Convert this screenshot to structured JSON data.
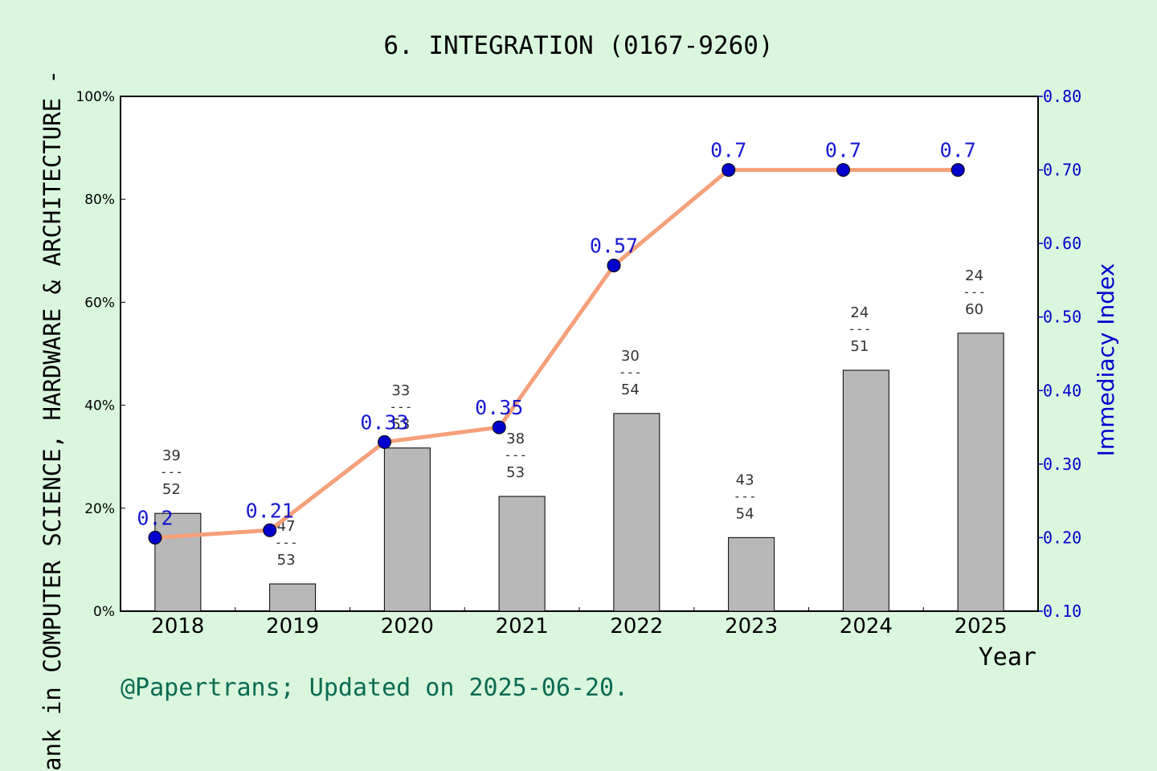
{
  "chart_data": {
    "type": "bar+line",
    "title": "6. INTEGRATION (0167-9260)",
    "xlabel": "Year",
    "ylabel_left": "ank in COMPUTER SCIENCE, HARDWARE & ARCHITECTURE -",
    "ylabel_right": "Immediacy Index",
    "categories": [
      "2018",
      "2019",
      "2020",
      "2021",
      "2022",
      "2023",
      "2024",
      "2025"
    ],
    "left_axis": {
      "ylim": [
        0,
        100
      ],
      "ticks": [
        "0%",
        "20%",
        "40%",
        "60%",
        "80%",
        "100%"
      ],
      "tick_values": [
        0,
        20,
        40,
        60,
        80,
        100
      ]
    },
    "right_axis": {
      "ylim": [
        0.1,
        0.8
      ],
      "ticks": [
        "0.10",
        "0.20",
        "0.30",
        "0.40",
        "0.50",
        "0.60",
        "0.70",
        "0.80"
      ],
      "tick_values": [
        0.1,
        0.2,
        0.3,
        0.4,
        0.5,
        0.6,
        0.7,
        0.8
      ]
    },
    "bars": {
      "color": "#b8b8b8",
      "values": [
        19.0,
        5.3,
        31.7,
        22.3,
        38.4,
        14.3,
        46.8,
        54.0
      ],
      "rank": [
        "39",
        "47",
        "33",
        "38",
        "30",
        "43",
        "24",
        "24"
      ],
      "total": [
        "52",
        "53",
        "53",
        "53",
        "54",
        "54",
        "51",
        "60"
      ],
      "separator": "---"
    },
    "line": {
      "color": "#f5a07a",
      "marker_color": "#0000cc",
      "values": [
        0.2,
        0.21,
        0.33,
        0.35,
        0.57,
        0.7,
        0.7,
        0.7
      ],
      "labels": [
        "0.2",
        "0.21",
        "0.33",
        "0.35",
        "0.57",
        "0.7",
        "0.7",
        "0.7"
      ]
    },
    "grid": false
  },
  "footer": {
    "note": "@Papertrans; Updated on 2025-06-20."
  },
  "colors": {
    "background": "#daf7de",
    "plot_bg": "#ffffff",
    "right_axis": "#0000cc",
    "footer": "#0a6b50"
  }
}
